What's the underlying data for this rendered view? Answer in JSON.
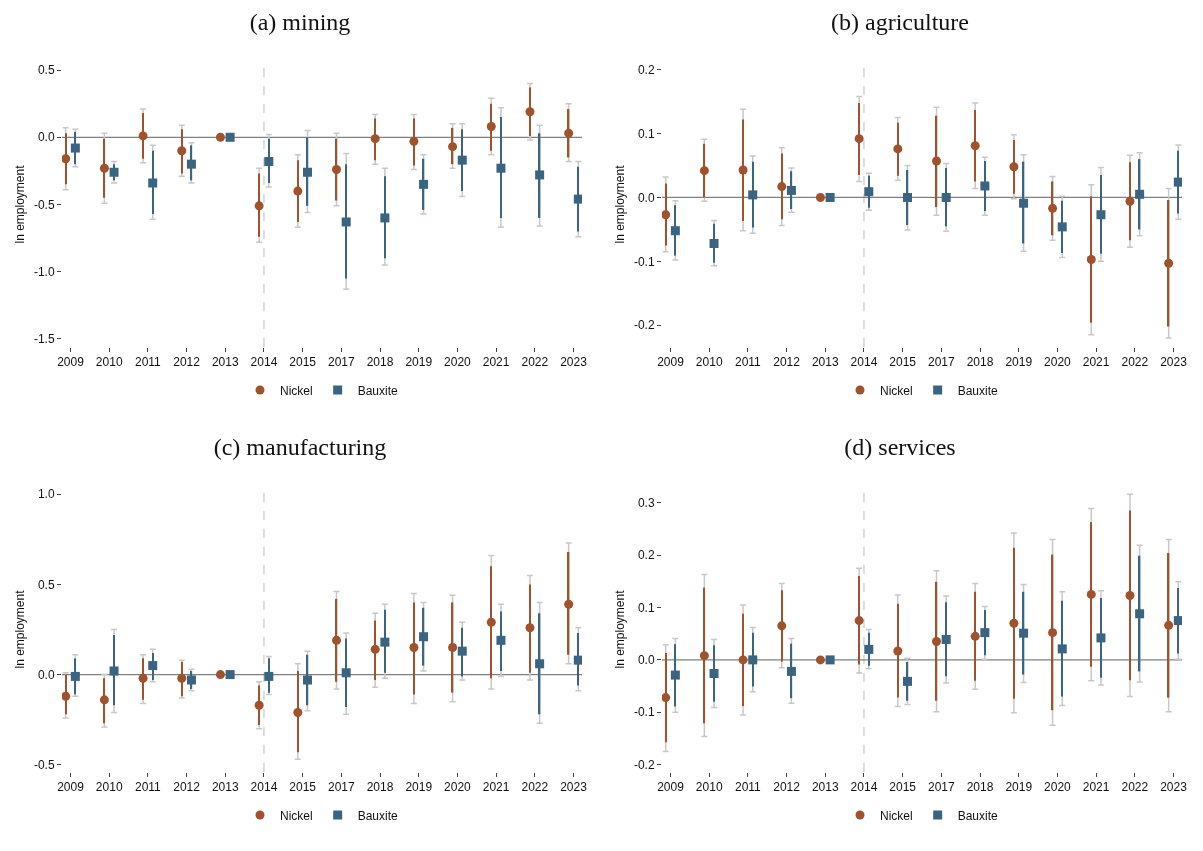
{
  "chart_data": [
    {
      "type": "scatter",
      "title": "(a) mining",
      "ylabel": "ln employment",
      "categories": [
        "2009",
        "2010",
        "2011",
        "2012",
        "2013",
        "2014",
        "2015",
        "2017",
        "2018",
        "2019",
        "2020",
        "2021",
        "2022",
        "2023"
      ],
      "ylim": [
        -1.56,
        0.56
      ],
      "yticks": [
        {
          "value": 0.5,
          "label": "0.5"
        },
        {
          "value": 0,
          "label": "0.0"
        },
        {
          "value": -0.5,
          "label": "-0.5"
        },
        {
          "value": -1,
          "label": "-1.0"
        },
        {
          "value": -1.5,
          "label": "-1.5"
        }
      ],
      "legend": "bottom",
      "grid": false,
      "ref_lines": [
        {
          "axis": "x",
          "value": "2014",
          "color": "#c8c8c8",
          "line_style": "dashed"
        },
        {
          "axis": "y",
          "value": 0,
          "color": "#808080",
          "line_style": "solid"
        }
      ],
      "series": [
        {
          "name": "Nickel",
          "color": "#a0522d",
          "marker": "circle",
          "values": [
            -0.16,
            -0.23,
            0.01,
            -0.1,
            0,
            -0.51,
            -0.4,
            -0.24,
            -0.01,
            -0.03,
            -0.07,
            0.08,
            0.19,
            0.03
          ],
          "errors": [
            [
              -0.39,
              0.07
            ],
            [
              -0.49,
              0.03
            ],
            [
              -0.19,
              0.21
            ],
            [
              -0.29,
              0.09
            ],
            null,
            [
              -0.78,
              -0.23
            ],
            [
              -0.67,
              -0.13
            ],
            [
              -0.51,
              0.03
            ],
            [
              -0.2,
              0.17
            ],
            [
              -0.24,
              0.17
            ],
            [
              -0.23,
              0.1
            ],
            [
              -0.13,
              0.29
            ],
            [
              -0.02,
              0.4
            ],
            [
              -0.18,
              0.25
            ]
          ]
        },
        {
          "name": "Bauxite",
          "color": "#3b6482",
          "marker": "square",
          "values": [
            -0.08,
            -0.26,
            -0.34,
            -0.2,
            0,
            -0.18,
            -0.26,
            -0.63,
            -0.6,
            -0.35,
            -0.17,
            -0.23,
            -0.28,
            -0.46
          ],
          "errors": [
            [
              -0.22,
              0.06
            ],
            [
              -0.34,
              -0.18
            ],
            [
              -0.61,
              -0.06
            ],
            [
              -0.34,
              -0.04
            ],
            null,
            [
              -0.37,
              0.02
            ],
            [
              -0.56,
              0.05
            ],
            [
              -1.13,
              -0.12
            ],
            [
              -0.95,
              -0.23
            ],
            [
              -0.57,
              -0.13
            ],
            [
              -0.44,
              0.1
            ],
            [
              -0.67,
              0.22
            ],
            [
              -0.66,
              0.09
            ],
            [
              -0.74,
              -0.18
            ]
          ]
        },
        {
          "type": "bar",
          "color": "#a0522d",
          "base": [
            -0.35,
            -0.45,
            -0.16,
            -0.27,
            null,
            -0.74,
            -0.63,
            -0.47,
            -0.17,
            -0.21,
            -0.2,
            -0.1,
            0.01,
            -0.15
          ],
          "values": [
            0.38,
            0.44,
            0.34,
            0.33,
            null,
            0.47,
            0.46,
            0.46,
            0.31,
            0.35,
            0.27,
            0.35,
            0.36,
            0.36
          ]
        },
        {
          "type": "bar",
          "color": "#3b6482",
          "base": [
            -0.2,
            -0.32,
            -0.57,
            -0.32,
            null,
            -0.34,
            -0.51,
            -1.05,
            -0.9,
            -0.54,
            -0.4,
            -0.6,
            -0.6,
            -0.7
          ],
          "values": [
            0.24,
            0.12,
            0.47,
            0.26,
            null,
            0.33,
            0.51,
            0.85,
            0.61,
            0.38,
            0.46,
            0.75,
            0.63,
            0.48
          ]
        }
      ]
    },
    {
      "type": "scatter",
      "title": "(b) agriculture",
      "ylabel": "ln employment",
      "categories": [
        "2009",
        "2010",
        "2011",
        "2012",
        "2013",
        "2014",
        "2015",
        "2017",
        "2018",
        "2019",
        "2020",
        "2021",
        "2022",
        "2023"
      ],
      "ylim": [
        -0.234,
        0.212
      ],
      "yticks": [
        {
          "value": 0.2,
          "label": "0.2"
        },
        {
          "value": 0.1,
          "label": "0.1"
        },
        {
          "value": 0,
          "label": "0.0"
        },
        {
          "value": -0.1,
          "label": "-0.1"
        },
        {
          "value": -0.2,
          "label": "-0.2"
        }
      ],
      "legend": "bottom",
      "grid": false,
      "ref_lines": [
        {
          "axis": "x",
          "value": "2014",
          "color": "#c8c8c8",
          "line_style": "dashed"
        },
        {
          "axis": "y",
          "value": 0,
          "color": "#808080",
          "line_style": "solid"
        }
      ],
      "series": [
        {
          "name": "Nickel",
          "color": "#a0522d",
          "marker": "circle",
          "values": [
            -0.027,
            0.042,
            0.043,
            0.017,
            0,
            0.092,
            0.076,
            0.057,
            0.081,
            0.048,
            -0.017,
            -0.097,
            -0.006,
            -0.103
          ],
          "errors": [
            [
              -0.085,
              0.032
            ],
            [
              -0.006,
              0.091
            ],
            [
              -0.052,
              0.138
            ],
            [
              -0.044,
              0.078
            ],
            null,
            [
              0.025,
              0.158
            ],
            [
              0.027,
              0.125
            ],
            [
              -0.028,
              0.141
            ],
            [
              0.014,
              0.148
            ],
            [
              -0.002,
              0.098
            ],
            [
              -0.067,
              0.033
            ],
            [
              -0.215,
              0.02
            ],
            [
              -0.078,
              0.066
            ],
            [
              -0.22,
              0.014
            ]
          ]
        },
        {
          "name": "Bauxite",
          "color": "#3b6482",
          "marker": "square",
          "values": [
            -0.052,
            -0.072,
            0.004,
            0.011,
            0,
            0.009,
            0.0,
            0.0,
            0.018,
            -0.009,
            -0.046,
            -0.027,
            0.005,
            0.024
          ],
          "errors": [
            [
              -0.098,
              -0.005
            ],
            [
              -0.107,
              -0.036
            ],
            [
              -0.056,
              0.065
            ],
            [
              -0.023,
              0.046
            ],
            null,
            [
              -0.02,
              0.038
            ],
            [
              -0.051,
              0.05
            ],
            [
              -0.053,
              0.053
            ],
            [
              -0.028,
              0.063
            ],
            [
              -0.084,
              0.067
            ],
            [
              -0.094,
              0.002
            ],
            [
              -0.1,
              0.047
            ],
            [
              -0.06,
              0.07
            ],
            [
              -0.034,
              0.082
            ]
          ]
        },
        {
          "type": "bar",
          "color": "#a0522d",
          "base": [
            -0.075,
            0.0,
            -0.037,
            -0.034,
            null,
            0.035,
            0.034,
            -0.015,
            0.025,
            0.006,
            -0.059,
            -0.196,
            -0.067,
            -0.202
          ],
          "values": [
            0.097,
            0.084,
            0.159,
            0.103,
            null,
            0.113,
            0.083,
            0.143,
            0.112,
            0.084,
            0.084,
            0.198,
            0.122,
            0.198
          ]
        },
        {
          "type": "bar",
          "color": "#3b6482",
          "base": [
            -0.091,
            -0.102,
            -0.047,
            -0.018,
            null,
            -0.016,
            -0.043,
            -0.045,
            -0.021,
            -0.072,
            -0.087,
            -0.088,
            -0.05,
            -0.025
          ],
          "values": [
            0.079,
            0.061,
            0.103,
            0.059,
            null,
            0.05,
            0.086,
            0.091,
            0.078,
            0.128,
            0.082,
            0.123,
            0.11,
            0.098
          ]
        }
      ]
    },
    {
      "type": "scatter",
      "title": "(c) manufacturing",
      "ylabel": "ln employment",
      "categories": [
        "2009",
        "2010",
        "2011",
        "2012",
        "2013",
        "2014",
        "2015",
        "2017",
        "2018",
        "2019",
        "2020",
        "2021",
        "2022",
        "2023"
      ],
      "ylim": [
        -0.54,
        1.04
      ],
      "yticks": [
        {
          "value": 1,
          "label": "1.0"
        },
        {
          "value": 0.5,
          "label": "0.5"
        },
        {
          "value": 0,
          "label": "0.0"
        },
        {
          "value": -0.5,
          "label": "-0.5"
        }
      ],
      "legend": "bottom",
      "grid": false,
      "ref_lines": [
        {
          "axis": "x",
          "value": "2014",
          "color": "#c8c8c8",
          "line_style": "dashed"
        },
        {
          "axis": "y",
          "value": 0,
          "color": "#808080",
          "line_style": "solid"
        }
      ],
      "series": [
        {
          "name": "Nickel",
          "color": "#a0522d",
          "marker": "circle",
          "values": [
            -0.12,
            -0.14,
            -0.02,
            -0.02,
            0,
            -0.17,
            -0.21,
            0.19,
            0.14,
            0.15,
            0.15,
            0.29,
            0.26,
            0.39
          ],
          "errors": [
            [
              -0.24,
              0.01
            ],
            [
              -0.29,
              0.0
            ],
            [
              -0.16,
              0.11
            ],
            [
              -0.13,
              0.08
            ],
            null,
            [
              -0.3,
              -0.04
            ],
            [
              -0.47,
              0.06
            ],
            [
              -0.08,
              0.46
            ],
            [
              -0.07,
              0.34
            ],
            [
              -0.16,
              0.45
            ],
            [
              -0.15,
              0.44
            ],
            [
              -0.08,
              0.66
            ],
            [
              -0.03,
              0.55
            ],
            [
              0.06,
              0.73
            ]
          ]
        },
        {
          "name": "Bauxite",
          "color": "#3b6482",
          "marker": "square",
          "values": [
            -0.01,
            0.02,
            0.05,
            -0.03,
            0,
            -0.01,
            -0.03,
            0.01,
            0.18,
            0.21,
            0.13,
            0.19,
            0.06,
            0.08
          ],
          "errors": [
            [
              -0.12,
              0.11
            ],
            [
              -0.21,
              0.25
            ],
            [
              -0.04,
              0.14
            ],
            [
              -0.09,
              0.03
            ],
            null,
            [
              -0.11,
              0.1
            ],
            [
              -0.2,
              0.13
            ],
            [
              -0.22,
              0.23
            ],
            [
              -0.02,
              0.39
            ],
            [
              0.02,
              0.4
            ],
            [
              -0.03,
              0.29
            ],
            [
              -0.01,
              0.39
            ],
            [
              -0.27,
              0.4
            ],
            [
              -0.09,
              0.26
            ]
          ]
        },
        {
          "type": "bar",
          "color": "#a0522d",
          "base": [
            -0.22,
            -0.27,
            -0.14,
            -0.12,
            null,
            -0.28,
            -0.43,
            -0.04,
            -0.03,
            -0.11,
            -0.1,
            -0.02,
            0.01,
            0.11
          ],
          "values": [
            0.22,
            0.25,
            0.23,
            0.19,
            null,
            0.22,
            0.45,
            0.46,
            0.33,
            0.51,
            0.5,
            0.62,
            0.49,
            0.57
          ]
        },
        {
          "type": "bar",
          "color": "#3b6482",
          "base": [
            -0.11,
            -0.17,
            -0.03,
            -0.08,
            null,
            -0.1,
            -0.17,
            -0.18,
            0.01,
            0.05,
            -0.01,
            0.02,
            -0.22,
            -0.06
          ],
          "values": [
            0.2,
            0.39,
            0.15,
            0.1,
            null,
            0.19,
            0.28,
            0.38,
            0.35,
            0.32,
            0.27,
            0.33,
            0.56,
            0.29
          ]
        }
      ]
    },
    {
      "type": "scatter",
      "title": "(d) services",
      "ylabel": "ln employment",
      "categories": [
        "2009",
        "2010",
        "2011",
        "2012",
        "2013",
        "2014",
        "2015",
        "2017",
        "2018",
        "2019",
        "2020",
        "2021",
        "2022",
        "2023"
      ],
      "ylim": [
        -0.214,
        0.33
      ],
      "yticks": [
        {
          "value": 0.3,
          "label": "0.3"
        },
        {
          "value": 0.2,
          "label": "0.2"
        },
        {
          "value": 0.1,
          "label": "0.1"
        },
        {
          "value": 0,
          "label": "0.0"
        },
        {
          "value": -0.1,
          "label": "-0.1"
        },
        {
          "value": -0.2,
          "label": "-0.2"
        }
      ],
      "legend": "bottom",
      "grid": false,
      "ref_lines": [
        {
          "axis": "x",
          "value": "2014",
          "color": "#c8c8c8",
          "line_style": "dashed"
        },
        {
          "axis": "y",
          "value": 0,
          "color": "#808080",
          "line_style": "solid"
        }
      ],
      "series": [
        {
          "name": "Nickel",
          "color": "#a0522d",
          "marker": "circle",
          "values": [
            -0.072,
            0.008,
            0.0,
            0.065,
            0,
            0.075,
            0.017,
            0.035,
            0.045,
            0.07,
            0.052,
            0.125,
            0.123,
            0.066
          ],
          "errors": [
            [
              -0.175,
              0.029
            ],
            [
              -0.146,
              0.163
            ],
            [
              -0.105,
              0.105
            ],
            [
              -0.015,
              0.146
            ],
            null,
            [
              -0.025,
              0.175
            ],
            [
              -0.089,
              0.124
            ],
            [
              -0.099,
              0.17
            ],
            [
              -0.056,
              0.146
            ],
            [
              -0.101,
              0.242
            ],
            [
              -0.125,
              0.23
            ],
            [
              -0.04,
              0.289
            ],
            [
              -0.07,
              0.316
            ],
            [
              -0.099,
              0.23
            ]
          ]
        },
        {
          "name": "Bauxite",
          "color": "#3b6482",
          "marker": "square",
          "values": [
            -0.029,
            -0.026,
            0.0,
            -0.022,
            0,
            0.02,
            -0.041,
            0.039,
            0.052,
            0.051,
            0.021,
            0.042,
            0.088,
            0.075
          ],
          "errors": [
            [
              -0.1,
              0.041
            ],
            [
              -0.091,
              0.039
            ],
            [
              -0.061,
              0.062
            ],
            [
              -0.083,
              0.041
            ],
            null,
            [
              -0.017,
              0.058
            ],
            [
              -0.085,
              0.003
            ],
            [
              -0.044,
              0.122
            ],
            [
              0.001,
              0.102
            ],
            [
              -0.043,
              0.144
            ],
            [
              -0.087,
              0.13
            ],
            [
              -0.048,
              0.132
            ],
            [
              -0.042,
              0.219
            ],
            [
              0.001,
              0.149
            ]
          ]
        },
        {
          "type": "bar",
          "color": "#a0522d",
          "base": [
            -0.157,
            -0.121,
            -0.088,
            -0.003,
            null,
            -0.009,
            -0.072,
            -0.078,
            -0.04,
            -0.074,
            -0.096,
            -0.013,
            -0.039,
            -0.072
          ],
          "values": [
            0.17,
            0.259,
            0.176,
            0.136,
            null,
            0.169,
            0.179,
            0.227,
            0.17,
            0.288,
            0.297,
            0.276,
            0.324,
            0.276
          ]
        },
        {
          "type": "bar",
          "color": "#3b6482",
          "base": [
            -0.089,
            -0.08,
            -0.051,
            -0.073,
            null,
            -0.011,
            -0.078,
            -0.031,
            0.009,
            -0.028,
            -0.07,
            -0.034,
            -0.022,
            0.012
          ],
          "values": [
            0.119,
            0.108,
            0.103,
            0.104,
            null,
            0.063,
            0.074,
            0.141,
            0.086,
            0.158,
            0.183,
            0.152,
            0.221,
            0.125
          ]
        }
      ]
    }
  ]
}
